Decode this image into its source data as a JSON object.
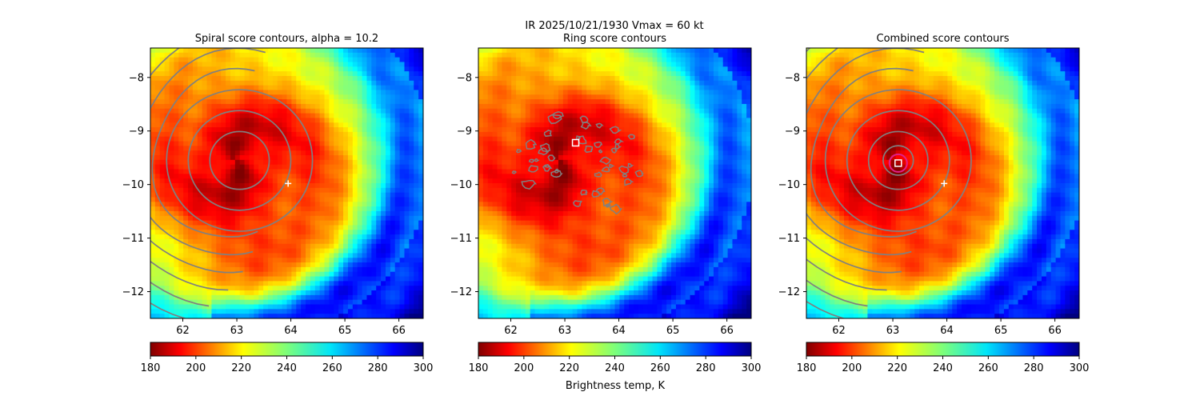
{
  "suptitle": {
    "line1": "IR  2025/10/21/1930    Vmax = 60 kt"
  },
  "chart_data": [
    {
      "type": "heatmap",
      "title": "Spiral score contours, alpha = 10.2",
      "xlim": [
        61.4,
        66.45
      ],
      "ylim": [
        -12.5,
        -7.45
      ],
      "xticks": [
        62,
        63,
        64,
        65,
        66
      ],
      "yticks": [
        -8,
        -9,
        -10,
        -11,
        -12
      ],
      "first_guess": [
        63.95,
        -9.98
      ],
      "contours": "spiral arcs centred near (63.0, -9.5)"
    },
    {
      "type": "heatmap",
      "title": "Ring score contours",
      "xlim": [
        61.4,
        66.45
      ],
      "ylim": [
        -12.5,
        -7.45
      ],
      "xticks": [
        62,
        63,
        64,
        65,
        66
      ],
      "yticks": [
        -8,
        -9,
        -10,
        -11,
        -12
      ],
      "best_center": [
        63.2,
        -9.22
      ],
      "contours": "fragmented ring blobs around (63.2, -9.6)"
    },
    {
      "type": "heatmap",
      "title": "Combined score contours",
      "xlim": [
        61.4,
        66.45
      ],
      "ylim": [
        -12.5,
        -7.45
      ],
      "xticks": [
        62,
        63,
        64,
        65,
        66
      ],
      "yticks": [
        -8,
        -9,
        -10,
        -11,
        -12
      ],
      "first_guess": [
        63.95,
        -9.98
      ],
      "best_center": [
        63.1,
        -9.6
      ],
      "contours": "spiral arcs + magenta ring near (63.1, -9.6)"
    }
  ],
  "colorbar": {
    "vmin": 180,
    "vmax": 300,
    "ticks": [
      180,
      200,
      220,
      240,
      260,
      280,
      300
    ],
    "label": "Brightness temp, K",
    "colormap": "jet_r"
  },
  "storm": {
    "center": [
      63.0,
      -9.55
    ],
    "colors": {
      "contour": "#808080",
      "ring": "#e0208a"
    }
  }
}
